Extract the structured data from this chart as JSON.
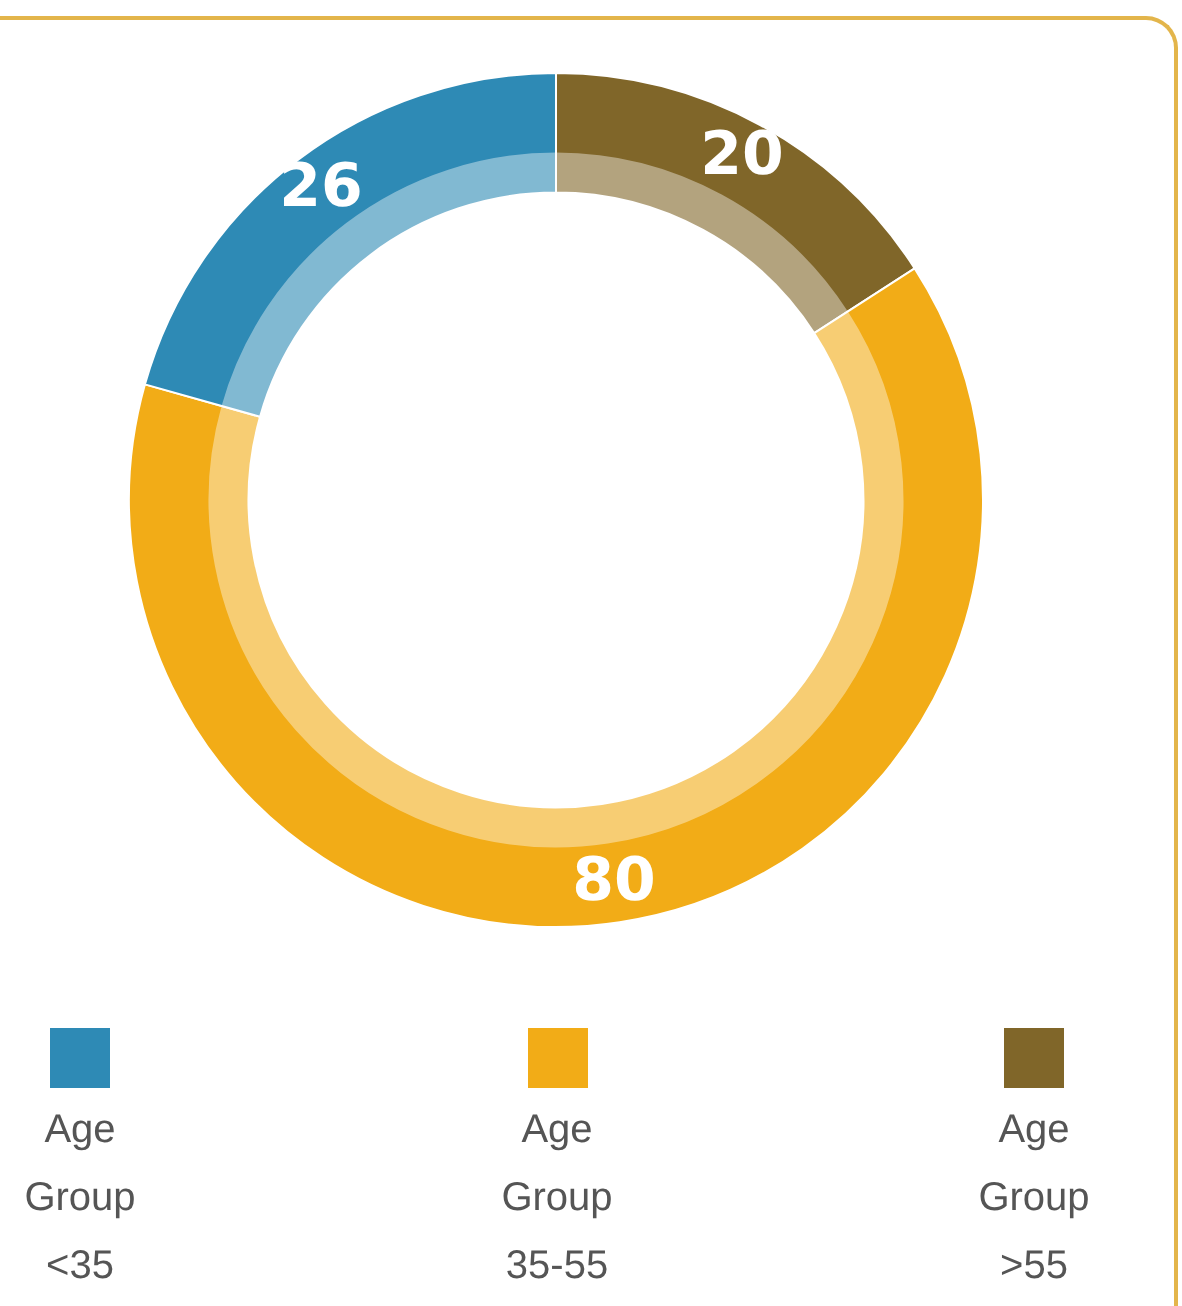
{
  "chart_data": {
    "type": "donut",
    "categories": [
      "Age Group <35",
      "Age Group 35-55",
      "Age Group >55"
    ],
    "values": [
      26,
      80,
      20
    ],
    "colors": [
      "#2e8ab5",
      "#f2ac17",
      "#806629"
    ],
    "data_labels": true,
    "legend": "bottom"
  }
}
